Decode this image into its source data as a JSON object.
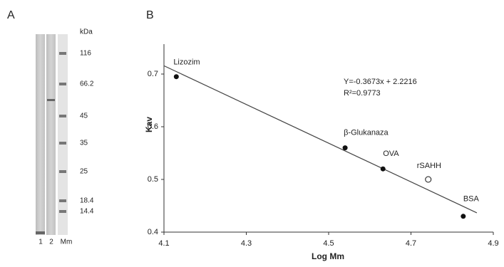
{
  "gel": {
    "panel": "A",
    "unit": "kDa",
    "markers": [
      116,
      66.2,
      45,
      35,
      25,
      18.4,
      14.4
    ],
    "lanes": [
      "1",
      "2",
      "Mm"
    ]
  },
  "chart_data": {
    "type": "scatter",
    "panel": "B",
    "x_label": "Log Mm",
    "y_label": "Kav",
    "labels": [
      "Lizozim",
      "β-Glukanaza",
      "OVA",
      "rSAHH",
      "BSA"
    ],
    "x": [
      4.13,
      4.54,
      4.632,
      4.742,
      4.827
    ],
    "values": [
      0.695,
      0.56,
      0.52,
      0.5,
      0.43
    ],
    "markers": [
      "filled",
      "filled",
      "filled",
      "open",
      "filled"
    ],
    "color": "#111111",
    "trendline": {
      "x": [
        4.1,
        4.86
      ],
      "values": [
        0.7157,
        0.4366
      ]
    },
    "annotations": [
      "Y=-0.3673x + 2.2216",
      "R²=0.9773"
    ],
    "xlim": [
      4.1,
      4.9
    ],
    "ylim": [
      0.4,
      0.75
    ],
    "xticks": [
      4.1,
      4.3,
      4.5,
      4.7,
      4.9
    ],
    "yticks": [
      0.4,
      0.5,
      0.6,
      0.7
    ]
  }
}
